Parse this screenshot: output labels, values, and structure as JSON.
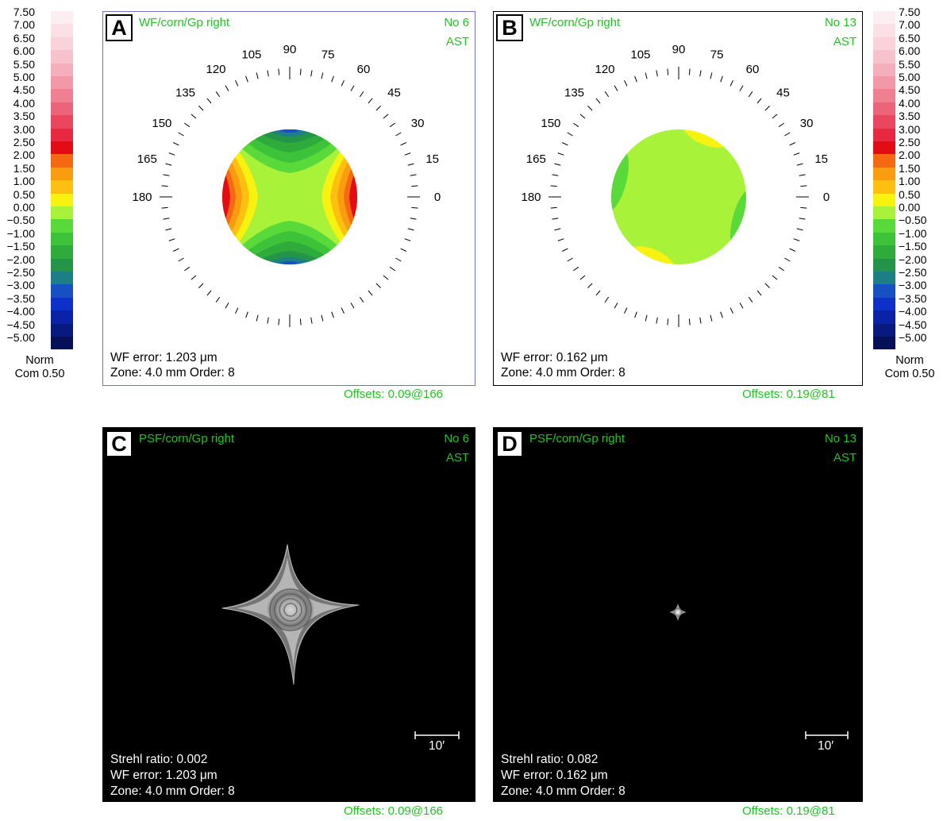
{
  "colors": {
    "accent_green": "#22c322",
    "panel_border_a": "#6f74c8",
    "panel_border_b": "#000000",
    "psf_background": "#000000"
  },
  "color_scale": {
    "values": [
      "7.50",
      "7.00",
      "6.50",
      "6.00",
      "5.50",
      "5.00",
      "4.50",
      "4.00",
      "3.50",
      "3.00",
      "2.50",
      "2.00",
      "1.50",
      "1.00",
      "0.50",
      "0.00",
      "−0.50",
      "−1.00",
      "−1.50",
      "−2.00",
      "−2.50",
      "−3.00",
      "−3.50",
      "−4.00",
      "−4.50",
      "−5.00"
    ],
    "swatches": [
      "#fdeef2",
      "#fbe0e6",
      "#fad2da",
      "#f8c2cc",
      "#f5aebb",
      "#f398a7",
      "#f07f92",
      "#ed6379",
      "#ea465f",
      "#e62840",
      "#e40c14",
      "#f56a10",
      "#fa9c10",
      "#fdc010",
      "#f8f210",
      "#a8f23a",
      "#5ada3a",
      "#3cc33a",
      "#2eab3a",
      "#249448",
      "#1d7f86",
      "#1650c2",
      "#0c30c8",
      "#0a22a8",
      "#081a80",
      "#051058"
    ],
    "footer_line1": "Norm",
    "footer_line2": "Com 0.50"
  },
  "panels": {
    "a": {
      "letter": "A",
      "title": "WF/corn/Gp right",
      "number": "No 6",
      "mode": "AST",
      "info1": "WF error: 1.203 μm",
      "info2": "Zone: 4.0 mm Order: 8",
      "offsets": "Offsets: 0.09@166"
    },
    "b": {
      "letter": "B",
      "title": "WF/corn/Gp right",
      "number": "No 13",
      "mode": "AST",
      "info1": "WF error: 0.162 μm",
      "info2": "Zone: 4.0 mm Order: 8",
      "offsets": "Offsets: 0.19@81"
    },
    "c": {
      "letter": "C",
      "title": "PSF/corn/Gp right",
      "number": "No 6",
      "mode": "AST",
      "strehl": "Strehl ratio: 0.002",
      "info1": "WF error: 1.203 μm",
      "info2": "Zone: 4.0 mm Order: 8",
      "scalebar": "10′",
      "offsets": "Offsets: 0.09@166"
    },
    "d": {
      "letter": "D",
      "title": "PSF/corn/Gp right",
      "number": "No 13",
      "mode": "AST",
      "strehl": "Strehl ratio: 0.082",
      "info1": "WF error: 0.162 μm",
      "info2": "Zone: 4.0 mm Order: 8",
      "scalebar": "10′",
      "offsets": "Offsets: 0.19@81"
    }
  },
  "dial_labels": [
    "180",
    "165",
    "150",
    "135",
    "120",
    "105",
    "90",
    "75",
    "60",
    "45",
    "30",
    "15",
    "0"
  ]
}
